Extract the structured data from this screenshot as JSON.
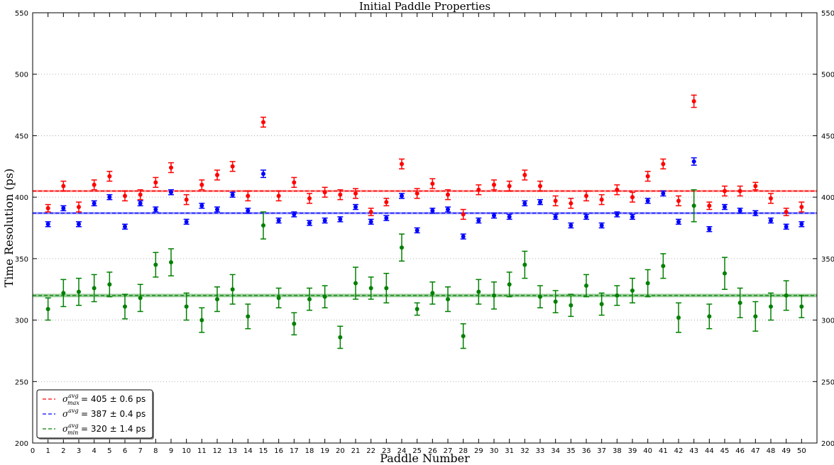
{
  "chart_data": {
    "type": "scatter",
    "title": "Initial Paddle Properties",
    "xlabel": "Paddle Number",
    "ylabel": "Time Resolution (ps)",
    "xlim": [
      0,
      51
    ],
    "ylim": [
      200,
      550
    ],
    "xticks": [
      "0",
      "1",
      "2",
      "3",
      "4",
      "5",
      "6",
      "7",
      "8",
      "9",
      "10",
      "11",
      "12",
      "13",
      "14",
      "15",
      "16",
      "17",
      "18",
      "19",
      "20",
      "21",
      "22",
      "23",
      "24",
      "25",
      "26",
      "27",
      "28",
      "29",
      "30",
      "31",
      "32",
      "33",
      "34",
      "35",
      "36",
      "37",
      "38",
      "39",
      "40",
      "41",
      "42",
      "43",
      "44",
      "45",
      "46",
      "47",
      "48",
      "49",
      "50"
    ],
    "yticks": [
      "200",
      "250",
      "300",
      "350",
      "400",
      "450",
      "500",
      "550"
    ],
    "grid": "horizontal dotted",
    "legend_position": "lower-left",
    "x": [
      1,
      2,
      3,
      4,
      5,
      6,
      7,
      8,
      9,
      10,
      11,
      12,
      13,
      14,
      15,
      16,
      17,
      18,
      19,
      20,
      21,
      22,
      23,
      24,
      25,
      26,
      27,
      28,
      29,
      30,
      31,
      32,
      33,
      34,
      35,
      36,
      37,
      38,
      39,
      40,
      41,
      42,
      43,
      44,
      45,
      46,
      47,
      48,
      49,
      50
    ],
    "series": [
      {
        "id": "max",
        "color": "#ff0000",
        "values": [
          391,
          409,
          392,
          410,
          417,
          401,
          402,
          412,
          424,
          398,
          410,
          418,
          425,
          401,
          461,
          401,
          412,
          399,
          404,
          402,
          403,
          388,
          396,
          427,
          403,
          411,
          402,
          386,
          406,
          410,
          409,
          418,
          409,
          397,
          395,
          401,
          398,
          406,
          400,
          417,
          427,
          397,
          478,
          393,
          405,
          405,
          409,
          399,
          388,
          392
        ],
        "errors": [
          3,
          4,
          4,
          4,
          4,
          4,
          4,
          4,
          4,
          4,
          4,
          4,
          4,
          4,
          4,
          4,
          4,
          4,
          4,
          4,
          4,
          3,
          3,
          4,
          4,
          4,
          4,
          4,
          4,
          4,
          4,
          4,
          4,
          4,
          4,
          4,
          4,
          4,
          4,
          4,
          4,
          4,
          5,
          3,
          4,
          4,
          3,
          4,
          3,
          4
        ],
        "mean": 405,
        "mean_error": 0.6,
        "legend": {
          "symbol": "σ",
          "sup": "avg",
          "sub": "max",
          "text": "= 405 ± 0.6 ps"
        }
      },
      {
        "id": "avg",
        "color": "#0000ff",
        "values": [
          378,
          391,
          378,
          395,
          400,
          376,
          395,
          390,
          404,
          380,
          393,
          390,
          402,
          389,
          419,
          381,
          386,
          379,
          381,
          382,
          392,
          380,
          383,
          401,
          373,
          389,
          390,
          368,
          381,
          385,
          384,
          395,
          396,
          384,
          377,
          384,
          377,
          386,
          384,
          397,
          403,
          380,
          429,
          374,
          392,
          389,
          387,
          381,
          376,
          378
        ],
        "errors": [
          2,
          2,
          2,
          2,
          2,
          2,
          2,
          2,
          2,
          2,
          2,
          2,
          2,
          2,
          3,
          2,
          2,
          2,
          2,
          2,
          2,
          2,
          2,
          2,
          2,
          2,
          2,
          2,
          2,
          2,
          2,
          2,
          2,
          2,
          2,
          2,
          2,
          2,
          2,
          2,
          2,
          2,
          3,
          2,
          2,
          2,
          2,
          2,
          2,
          2
        ],
        "mean": 387,
        "mean_error": 0.4,
        "legend": {
          "symbol": "σ",
          "sup": "avg",
          "sub": "",
          "text": "= 387 ± 0.4 ps"
        }
      },
      {
        "id": "min",
        "color": "#008000",
        "values": [
          309,
          322,
          323,
          326,
          329,
          311,
          318,
          345,
          347,
          311,
          300,
          317,
          325,
          303,
          377,
          318,
          297,
          317,
          319,
          286,
          330,
          326,
          326,
          359,
          309,
          322,
          317,
          287,
          323,
          320,
          329,
          345,
          319,
          315,
          312,
          328,
          313,
          320,
          324,
          330,
          344,
          302,
          393,
          303,
          338,
          314,
          303,
          311,
          320,
          311
        ],
        "errors": [
          9,
          11,
          11,
          11,
          10,
          10,
          11,
          10,
          11,
          11,
          10,
          10,
          12,
          10,
          11,
          8,
          9,
          9,
          9,
          9,
          13,
          9,
          12,
          11,
          5,
          9,
          10,
          10,
          10,
          11,
          10,
          11,
          9,
          9,
          9,
          9,
          9,
          8,
          10,
          11,
          10,
          12,
          13,
          10,
          13,
          12,
          12,
          11,
          12,
          9
        ],
        "mean": 320,
        "mean_error": 1.4,
        "legend": {
          "symbol": "σ",
          "sup": "avg",
          "sub": "min",
          "text": "= 320 ± 1.4 ps"
        }
      }
    ]
  }
}
